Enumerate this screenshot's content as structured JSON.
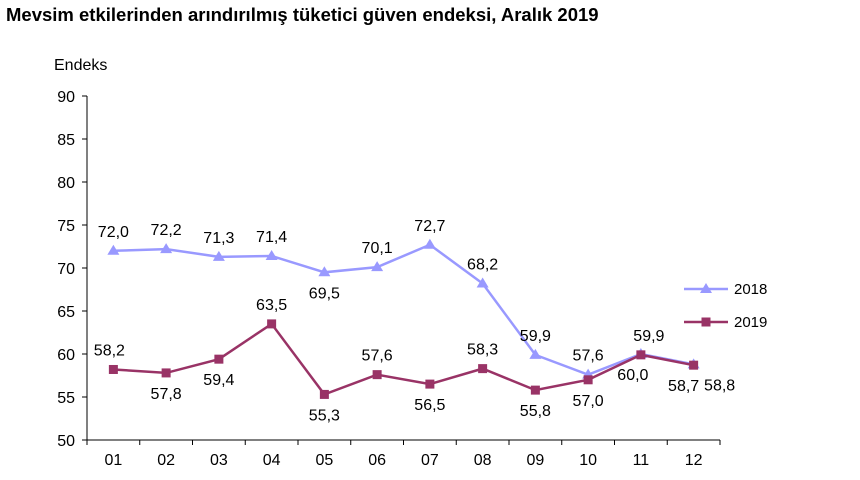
{
  "title": "Mevsim etkilerinden arındırılmış tüketici güven endeksi, Aralık 2019",
  "chart_data": {
    "type": "line",
    "title": "Mevsim etkilerinden arındırılmış tüketici güven endeksi, Aralık 2019",
    "ylabel": "Endeks",
    "xlabel": "",
    "ylim": [
      50,
      90
    ],
    "yticks": [
      50,
      55,
      60,
      65,
      70,
      75,
      80,
      85,
      90
    ],
    "grid": false,
    "legend": "right",
    "categories": [
      "01",
      "02",
      "03",
      "04",
      "05",
      "06",
      "07",
      "08",
      "09",
      "10",
      "11",
      "12"
    ],
    "series": [
      {
        "name": "2018",
        "color": "#9999ff",
        "marker": "triangle",
        "values": [
          72.0,
          72.2,
          71.3,
          71.4,
          69.5,
          70.1,
          72.7,
          68.2,
          59.9,
          57.6,
          60.0,
          58.8
        ],
        "labels": [
          "72,0",
          "72,2",
          "71,3",
          "71,4",
          "69,5",
          "70,1",
          "72,7",
          "68,2",
          "59,9",
          "57,6",
          "60,0",
          "58,8"
        ]
      },
      {
        "name": "2019",
        "color": "#993366",
        "marker": "square",
        "values": [
          58.2,
          57.8,
          59.4,
          63.5,
          55.3,
          57.6,
          56.5,
          58.3,
          55.8,
          57.0,
          59.9,
          58.7
        ],
        "labels": [
          "58,2",
          "57,8",
          "59,4",
          "63,5",
          "55,3",
          "57,6",
          "56,5",
          "58,3",
          "55,8",
          "57,0",
          "59,9",
          "58,7"
        ]
      }
    ]
  }
}
